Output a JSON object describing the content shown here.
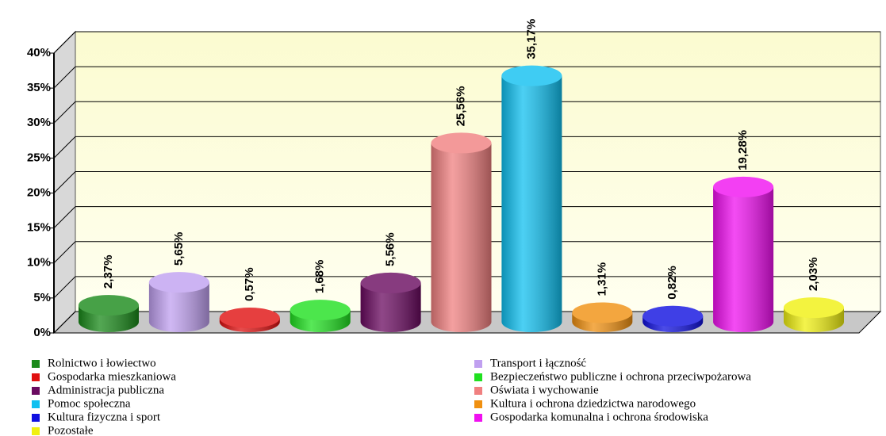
{
  "chart_data": {
    "type": "bar3d",
    "ylim": [
      0,
      40
    ],
    "yticks": [
      {
        "value": 0,
        "label": "0%"
      },
      {
        "value": 5,
        "label": "5%"
      },
      {
        "value": 10,
        "label": "10%"
      },
      {
        "value": 15,
        "label": "15%"
      },
      {
        "value": 20,
        "label": "20%"
      },
      {
        "value": 25,
        "label": "25%"
      },
      {
        "value": 30,
        "label": "30%"
      },
      {
        "value": 35,
        "label": "35%"
      },
      {
        "value": 40,
        "label": "40%"
      }
    ],
    "grid": true,
    "series": [
      {
        "name": "Rolnictwo i łowiectwo",
        "color": "#1a8a1a",
        "values": [
          2.37
        ],
        "value_labels": [
          "2,37%"
        ]
      },
      {
        "name": "Transport i łączność",
        "color": "#c0a0f0",
        "values": [
          5.65
        ],
        "value_labels": [
          "5,65%"
        ]
      },
      {
        "name": "Gospodarka mieszkaniowa",
        "color": "#e01010",
        "values": [
          0.57
        ],
        "value_labels": [
          "0,57%"
        ]
      },
      {
        "name": "Bezpieczeństwo publiczne i ochrona przeciwpożarowa",
        "color": "#20e020",
        "values": [
          1.68
        ],
        "value_labels": [
          "1,68%"
        ]
      },
      {
        "name": "Administracja publiczna",
        "color": "#6a0a60",
        "values": [
          5.56
        ],
        "value_labels": [
          "5,56%"
        ]
      },
      {
        "name": "Oświata i wychowanie",
        "color": "#f08080",
        "values": [
          25.56
        ],
        "value_labels": [
          "25,56%"
        ]
      },
      {
        "name": "Pomoc społeczna",
        "color": "#10c0f0",
        "values": [
          35.17
        ],
        "value_labels": [
          "35,17%"
        ]
      },
      {
        "name": "Kultura i ochrona dziedzictwa narodowego",
        "color": "#f09010",
        "values": [
          1.31
        ],
        "value_labels": [
          "1,31%"
        ]
      },
      {
        "name": "Kultura fizyczna i sport",
        "color": "#1010e0",
        "values": [
          0.82
        ],
        "value_labels": [
          "0,82%"
        ]
      },
      {
        "name": "Gospodarka komunalna i ochrona środowiska",
        "color": "#f010f0",
        "values": [
          19.28
        ],
        "value_labels": [
          "19,28%"
        ]
      },
      {
        "name": "Pozostałe",
        "color": "#f0f010",
        "values": [
          2.03
        ],
        "value_labels": [
          "2,03%"
        ]
      }
    ]
  }
}
